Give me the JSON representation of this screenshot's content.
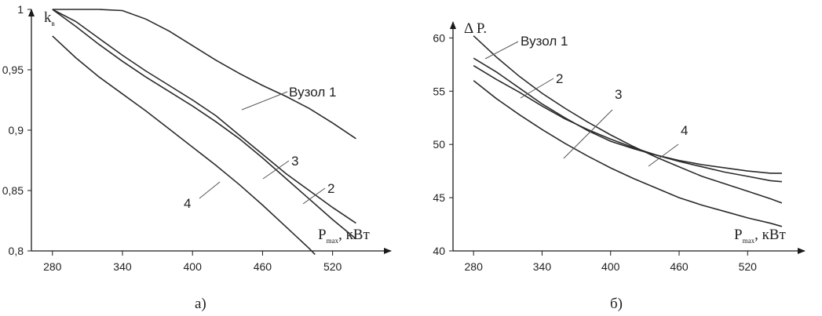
{
  "chart_data": [
    {
      "type": "line",
      "panel_label": "а)",
      "ylabel": {
        "main": "k",
        "sub": "в"
      },
      "xlabel": {
        "main": "P",
        "sub": "max",
        "unit": ", кВт"
      },
      "xlim": [
        262,
        570
      ],
      "ylim": [
        0.8,
        1.0
      ],
      "xticks": [
        280,
        340,
        400,
        460,
        520
      ],
      "yticks": [
        0.8,
        0.85,
        0.9,
        0.95,
        1.0
      ],
      "ytick_labels": [
        "0,8",
        "0,85",
        "0,9",
        "0,95",
        "1"
      ],
      "series": [
        {
          "name": "Вузол 1",
          "x": [
            280,
            300,
            320,
            340,
            360,
            380,
            400,
            420,
            440,
            460,
            480,
            500,
            520,
            540
          ],
          "y": [
            1.0,
            1.0,
            1.0,
            0.999,
            0.992,
            0.982,
            0.97,
            0.958,
            0.947,
            0.937,
            0.928,
            0.918,
            0.906,
            0.893
          ]
        },
        {
          "name": "2",
          "x": [
            280,
            300,
            320,
            340,
            360,
            380,
            400,
            420,
            440,
            460,
            480,
            500,
            520,
            540
          ],
          "y": [
            1.0,
            0.99,
            0.976,
            0.962,
            0.949,
            0.937,
            0.925,
            0.912,
            0.896,
            0.88,
            0.864,
            0.85,
            0.836,
            0.823
          ]
        },
        {
          "name": "3",
          "x": [
            280,
            300,
            320,
            340,
            360,
            380,
            400,
            420,
            440,
            460,
            480,
            500,
            520,
            540
          ],
          "y": [
            1.0,
            0.986,
            0.971,
            0.957,
            0.944,
            0.932,
            0.92,
            0.907,
            0.893,
            0.877,
            0.86,
            0.843,
            0.826,
            0.81
          ]
        },
        {
          "name": "4",
          "x": [
            280,
            300,
            320,
            340,
            360,
            380,
            400,
            420,
            440,
            460,
            480,
            500,
            505
          ],
          "y": [
            0.978,
            0.96,
            0.944,
            0.93,
            0.916,
            0.901,
            0.886,
            0.871,
            0.855,
            0.838,
            0.82,
            0.802,
            0.797
          ]
        }
      ]
    },
    {
      "type": "line",
      "panel_label": "б)",
      "ylabel": {
        "main": "Δ P."
      },
      "xlabel": {
        "main": "P",
        "sub": "max",
        "unit": ", кВт"
      },
      "xlim": [
        262,
        570
      ],
      "ylim": [
        40,
        61.5
      ],
      "xticks": [
        280,
        340,
        400,
        460,
        520
      ],
      "yticks": [
        40,
        45,
        50,
        55,
        60
      ],
      "ytick_labels": [
        "40",
        "45",
        "50",
        "55",
        "60"
      ],
      "series": [
        {
          "name": "Вузол 1",
          "x": [
            280,
            300,
            320,
            340,
            360,
            380,
            400,
            420,
            440,
            460,
            480,
            500,
            520,
            540,
            550
          ],
          "y": [
            60.2,
            58.2,
            56.4,
            54.8,
            53.4,
            52.1,
            50.9,
            49.8,
            48.8,
            47.9,
            47.0,
            46.3,
            45.6,
            44.9,
            44.5
          ]
        },
        {
          "name": "2",
          "x": [
            280,
            300,
            320,
            340,
            360,
            380,
            400,
            420,
            440,
            460,
            480,
            500,
            520,
            540,
            550
          ],
          "y": [
            58.1,
            56.8,
            55.3,
            53.8,
            52.5,
            51.3,
            50.3,
            49.6,
            49.0,
            48.5,
            48.1,
            47.8,
            47.5,
            47.3,
            47.3
          ]
        },
        {
          "name": "3",
          "x": [
            280,
            300,
            320,
            340,
            360,
            380,
            400,
            420,
            440,
            460,
            480,
            500,
            520,
            540,
            550
          ],
          "y": [
            57.4,
            56.1,
            54.9,
            53.6,
            52.4,
            51.4,
            50.5,
            49.7,
            49.0,
            48.4,
            47.9,
            47.4,
            47.0,
            46.6,
            46.5
          ]
        },
        {
          "name": "4",
          "x": [
            280,
            300,
            320,
            340,
            360,
            380,
            400,
            420,
            440,
            460,
            480,
            500,
            520,
            540,
            550
          ],
          "y": [
            56.0,
            54.3,
            52.8,
            51.4,
            50.1,
            48.9,
            47.8,
            46.8,
            45.9,
            45.0,
            44.3,
            43.7,
            43.1,
            42.6,
            42.3
          ]
        }
      ]
    }
  ]
}
